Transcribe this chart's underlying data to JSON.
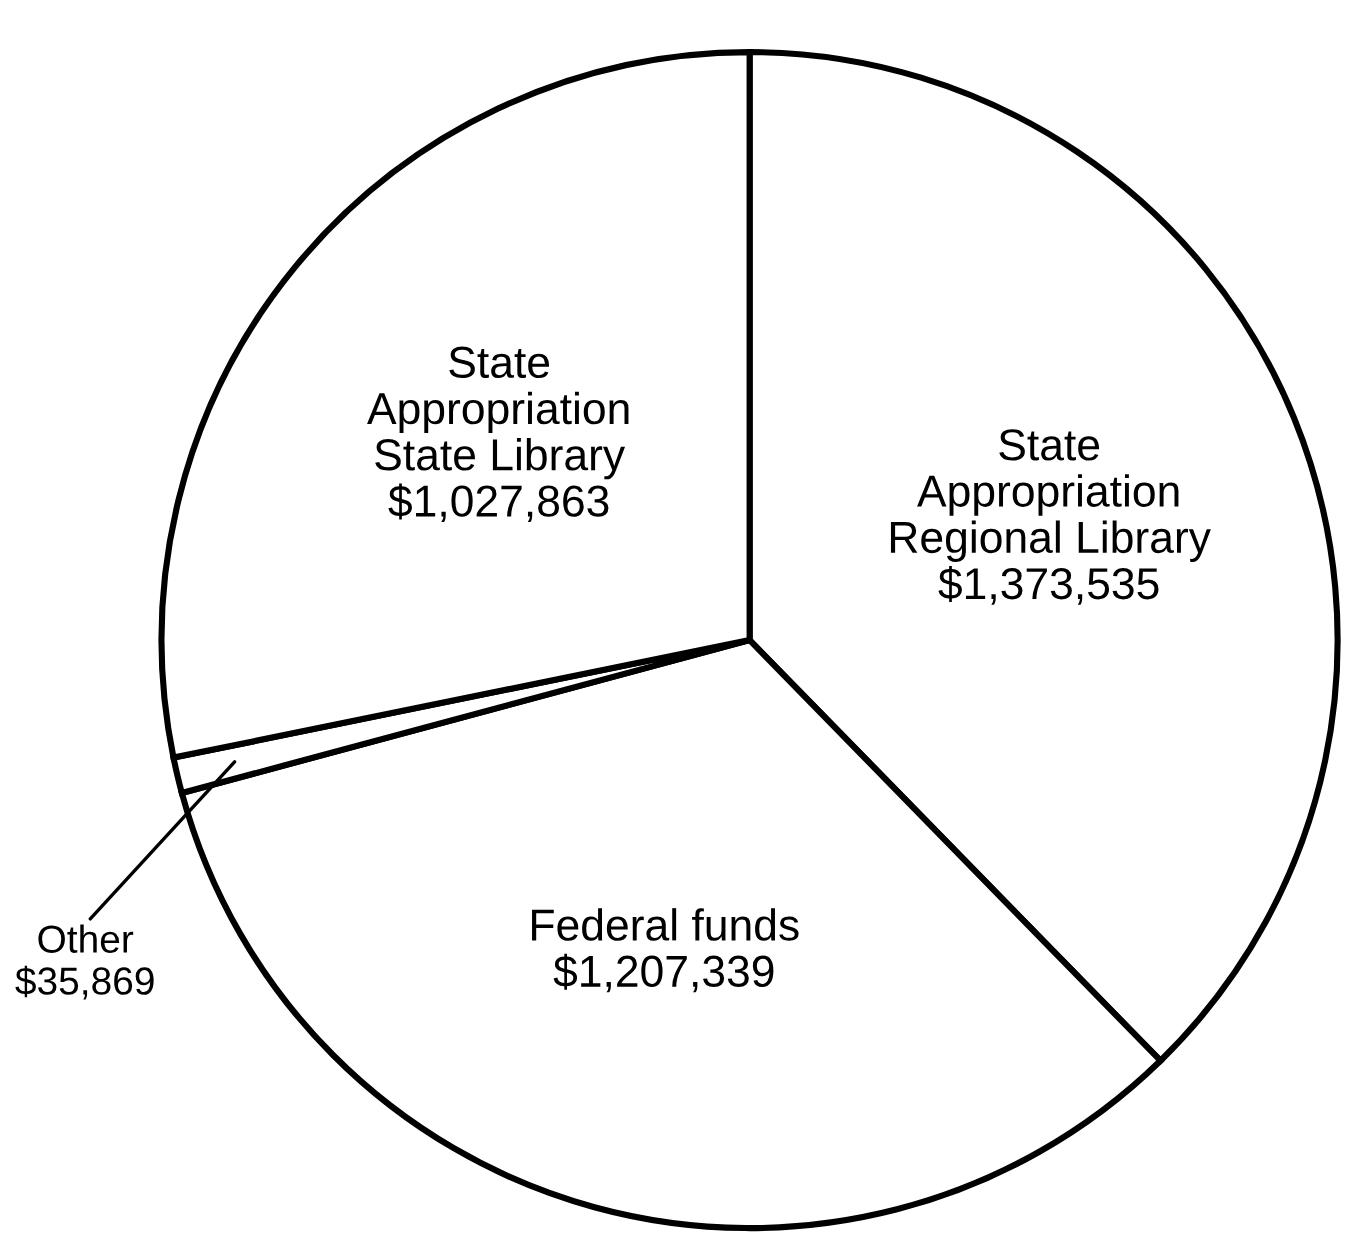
{
  "chart_data": {
    "type": "pie",
    "categories": [
      "State\nAppropriation\nRegional Library",
      "Federal funds",
      "Other",
      "State\nAppropriation\nState Library"
    ],
    "values": [
      1373535,
      1207339,
      35869,
      1027863
    ],
    "value_labels": [
      "$1,373,535",
      "$1,207,339",
      "$35,869",
      "$1,027,863"
    ],
    "colors": [
      "#ffffff",
      "#ffffff",
      "#ffffff",
      "#ffffff"
    ]
  }
}
